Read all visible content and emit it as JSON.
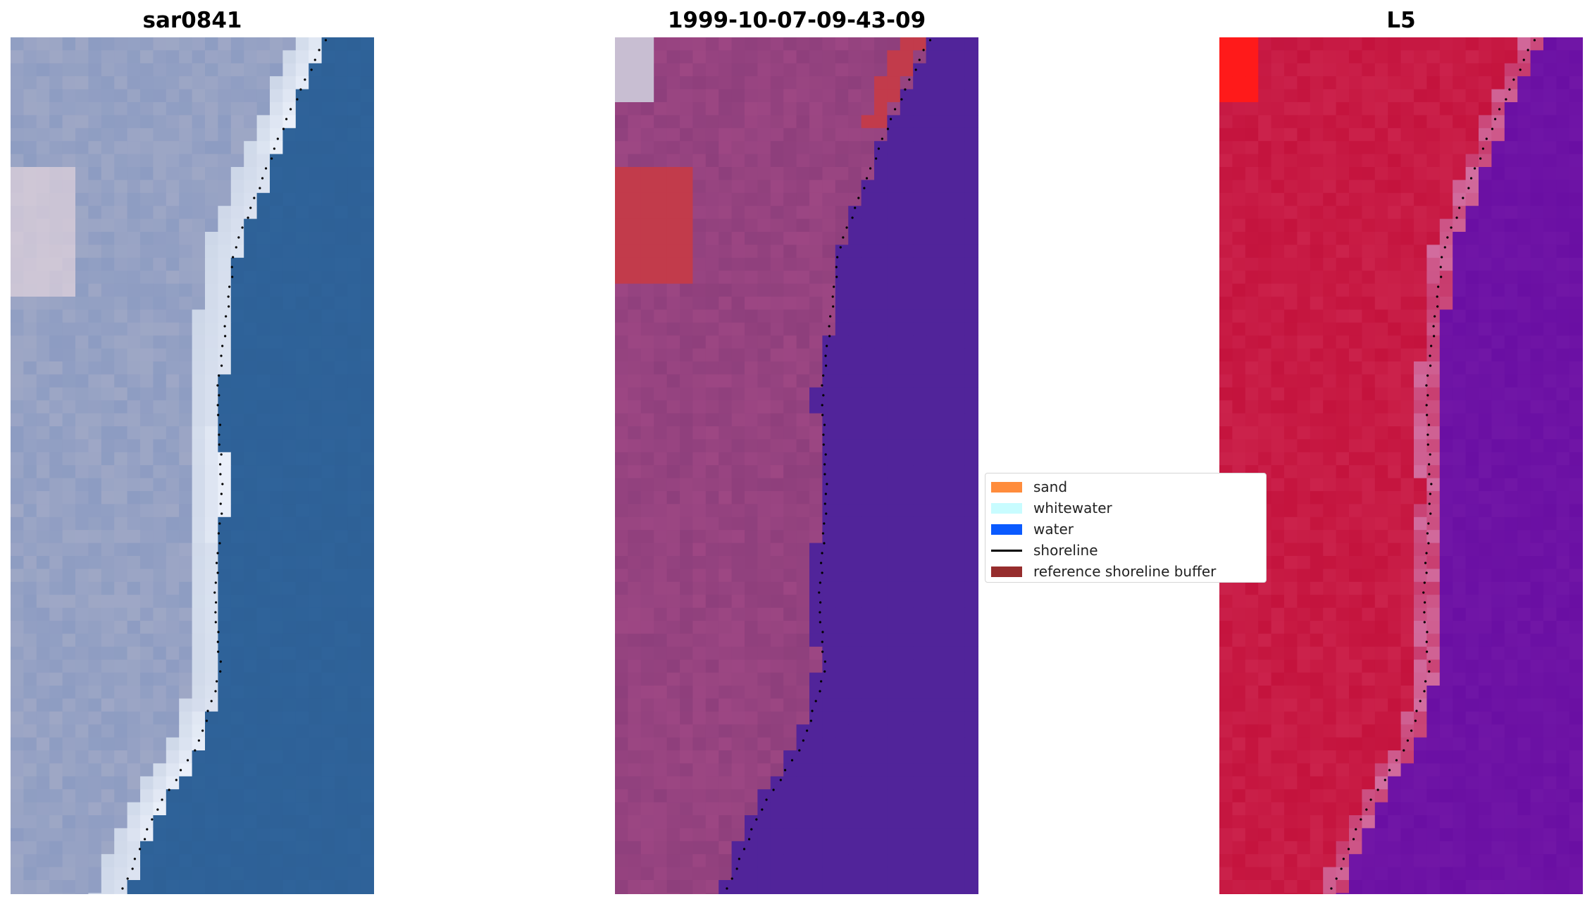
{
  "panels": [
    {
      "title": "sar0841"
    },
    {
      "title": "1999-10-07-09-43-09"
    },
    {
      "title": "L5"
    }
  ],
  "legend": {
    "items": [
      {
        "label": "sand",
        "color": "#ff8c3c",
        "kind": "patch"
      },
      {
        "label": "whitewater",
        "color": "#c8fcff",
        "kind": "patch"
      },
      {
        "label": "water",
        "color": "#0a5aff",
        "kind": "patch"
      },
      {
        "label": "shoreline",
        "color": "#000000",
        "kind": "line"
      },
      {
        "label": "reference shoreline buffer",
        "color": "#962d2d",
        "kind": "patch"
      }
    ]
  },
  "colors": {
    "rgb_land": "#8d9cc2",
    "rgb_water": "#2f639a",
    "class_land": "#8e3f7c",
    "class_water": "#51249a",
    "class_buffer": "#c23b4b",
    "ndwi_land": "#c4133d",
    "ndwi_water": "#6a0fa3",
    "ndwi_max": "#ff1a1a"
  }
}
